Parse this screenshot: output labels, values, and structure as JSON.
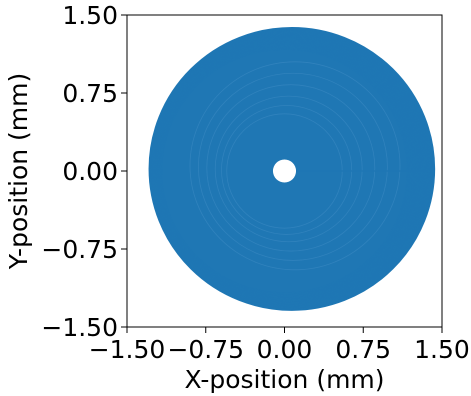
{
  "chart_data": {
    "type": "line",
    "title": "",
    "xlabel": "X-position (mm)",
    "ylabel": "Y-position (mm)",
    "xlim": [
      -1.5,
      1.5
    ],
    "ylim": [
      -1.5,
      1.5
    ],
    "x_ticks": [
      -1.5,
      -0.75,
      0.0,
      0.75,
      1.5
    ],
    "y_ticks": [
      -1.5,
      -0.75,
      0.0,
      0.75,
      1.5
    ],
    "x_tick_labels": [
      "−1.50",
      "−0.75",
      "0.00",
      "0.75",
      "1.50"
    ],
    "y_tick_labels": [
      "−1.50",
      "−0.75",
      "0.00",
      "0.75",
      "1.50"
    ],
    "grid": false,
    "legend": "none",
    "series": [
      {
        "color": "#1f77b4",
        "description_shape": "dense spiral of concentric loops",
        "center": [
          0.0,
          0.0
        ],
        "inner_hole_radius": 0.11,
        "outer_radius": 1.36,
        "outer_radius_offset": [
          0.07,
          0.02
        ],
        "radial_segment_from": [
          0.11,
          0.0
        ],
        "radial_segment_to": [
          1.36,
          0.0
        ]
      }
    ]
  }
}
